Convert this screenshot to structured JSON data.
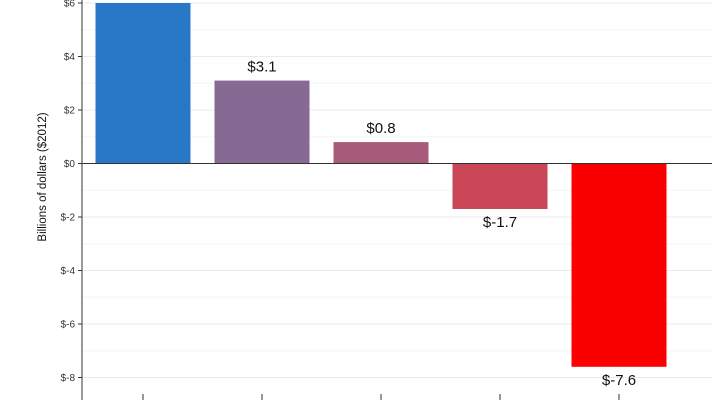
{
  "chart_data": {
    "type": "bar",
    "title": "",
    "xlabel": "",
    "ylabel": "Billions of dollars ($2012)",
    "categories": [
      "",
      "",
      "",
      "",
      ""
    ],
    "values": [
      6.0,
      3.1,
      0.8,
      -1.7,
      -7.6
    ],
    "data_labels": [
      "",
      "$3.1",
      "$0.8",
      "$-1.7",
      "$-7.6"
    ],
    "colors": [
      "#2878c8",
      "#866a94",
      "#a85a7a",
      "#c84656",
      "#fb0000"
    ],
    "ylim": [
      -8.5,
      6.0
    ],
    "yticks": [
      6,
      4,
      2,
      0,
      -2,
      -4,
      -6,
      -8
    ],
    "ytick_labels": [
      "$6",
      "$4",
      "$2",
      "$0",
      "$-2",
      "$-4",
      "$-6",
      "$-8"
    ],
    "grid": true,
    "legend": "none"
  }
}
